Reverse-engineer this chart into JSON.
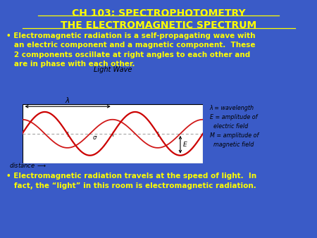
{
  "bg_color": "#3a5bc7",
  "title1": "CH 103: SPECTROPHOTOMETRY",
  "title2": "THE ELECTROMAGNETIC SPECTRUM",
  "title_color": "#ffff00",
  "bullet1_lines": [
    "• Electromagnetic radiation is a self-propagating wave with",
    "   an electric component and a magnetic component.  These",
    "   2 components oscillate at right angles to each other and",
    "   are in phase with each other."
  ],
  "bullet2_lines": [
    "• Electromagnetic radiation travels at the speed of light.  In",
    "   fact, the “light” in this room is electromagnetic radiation."
  ],
  "bullet_color": "#ffff00",
  "wave_title": "Light Wave",
  "wave_xlabel": "distance",
  "legend_lines": [
    "λ = wavelength",
    "E = amplitude of",
    "  electric field",
    "M = amplitude of",
    "  magnetic field"
  ],
  "wave_bg": "#e8e8e8",
  "wave_color": "#cc0000",
  "dashed_color": "#999999",
  "tick_color": "#555555",
  "annotation_color": "#000000"
}
